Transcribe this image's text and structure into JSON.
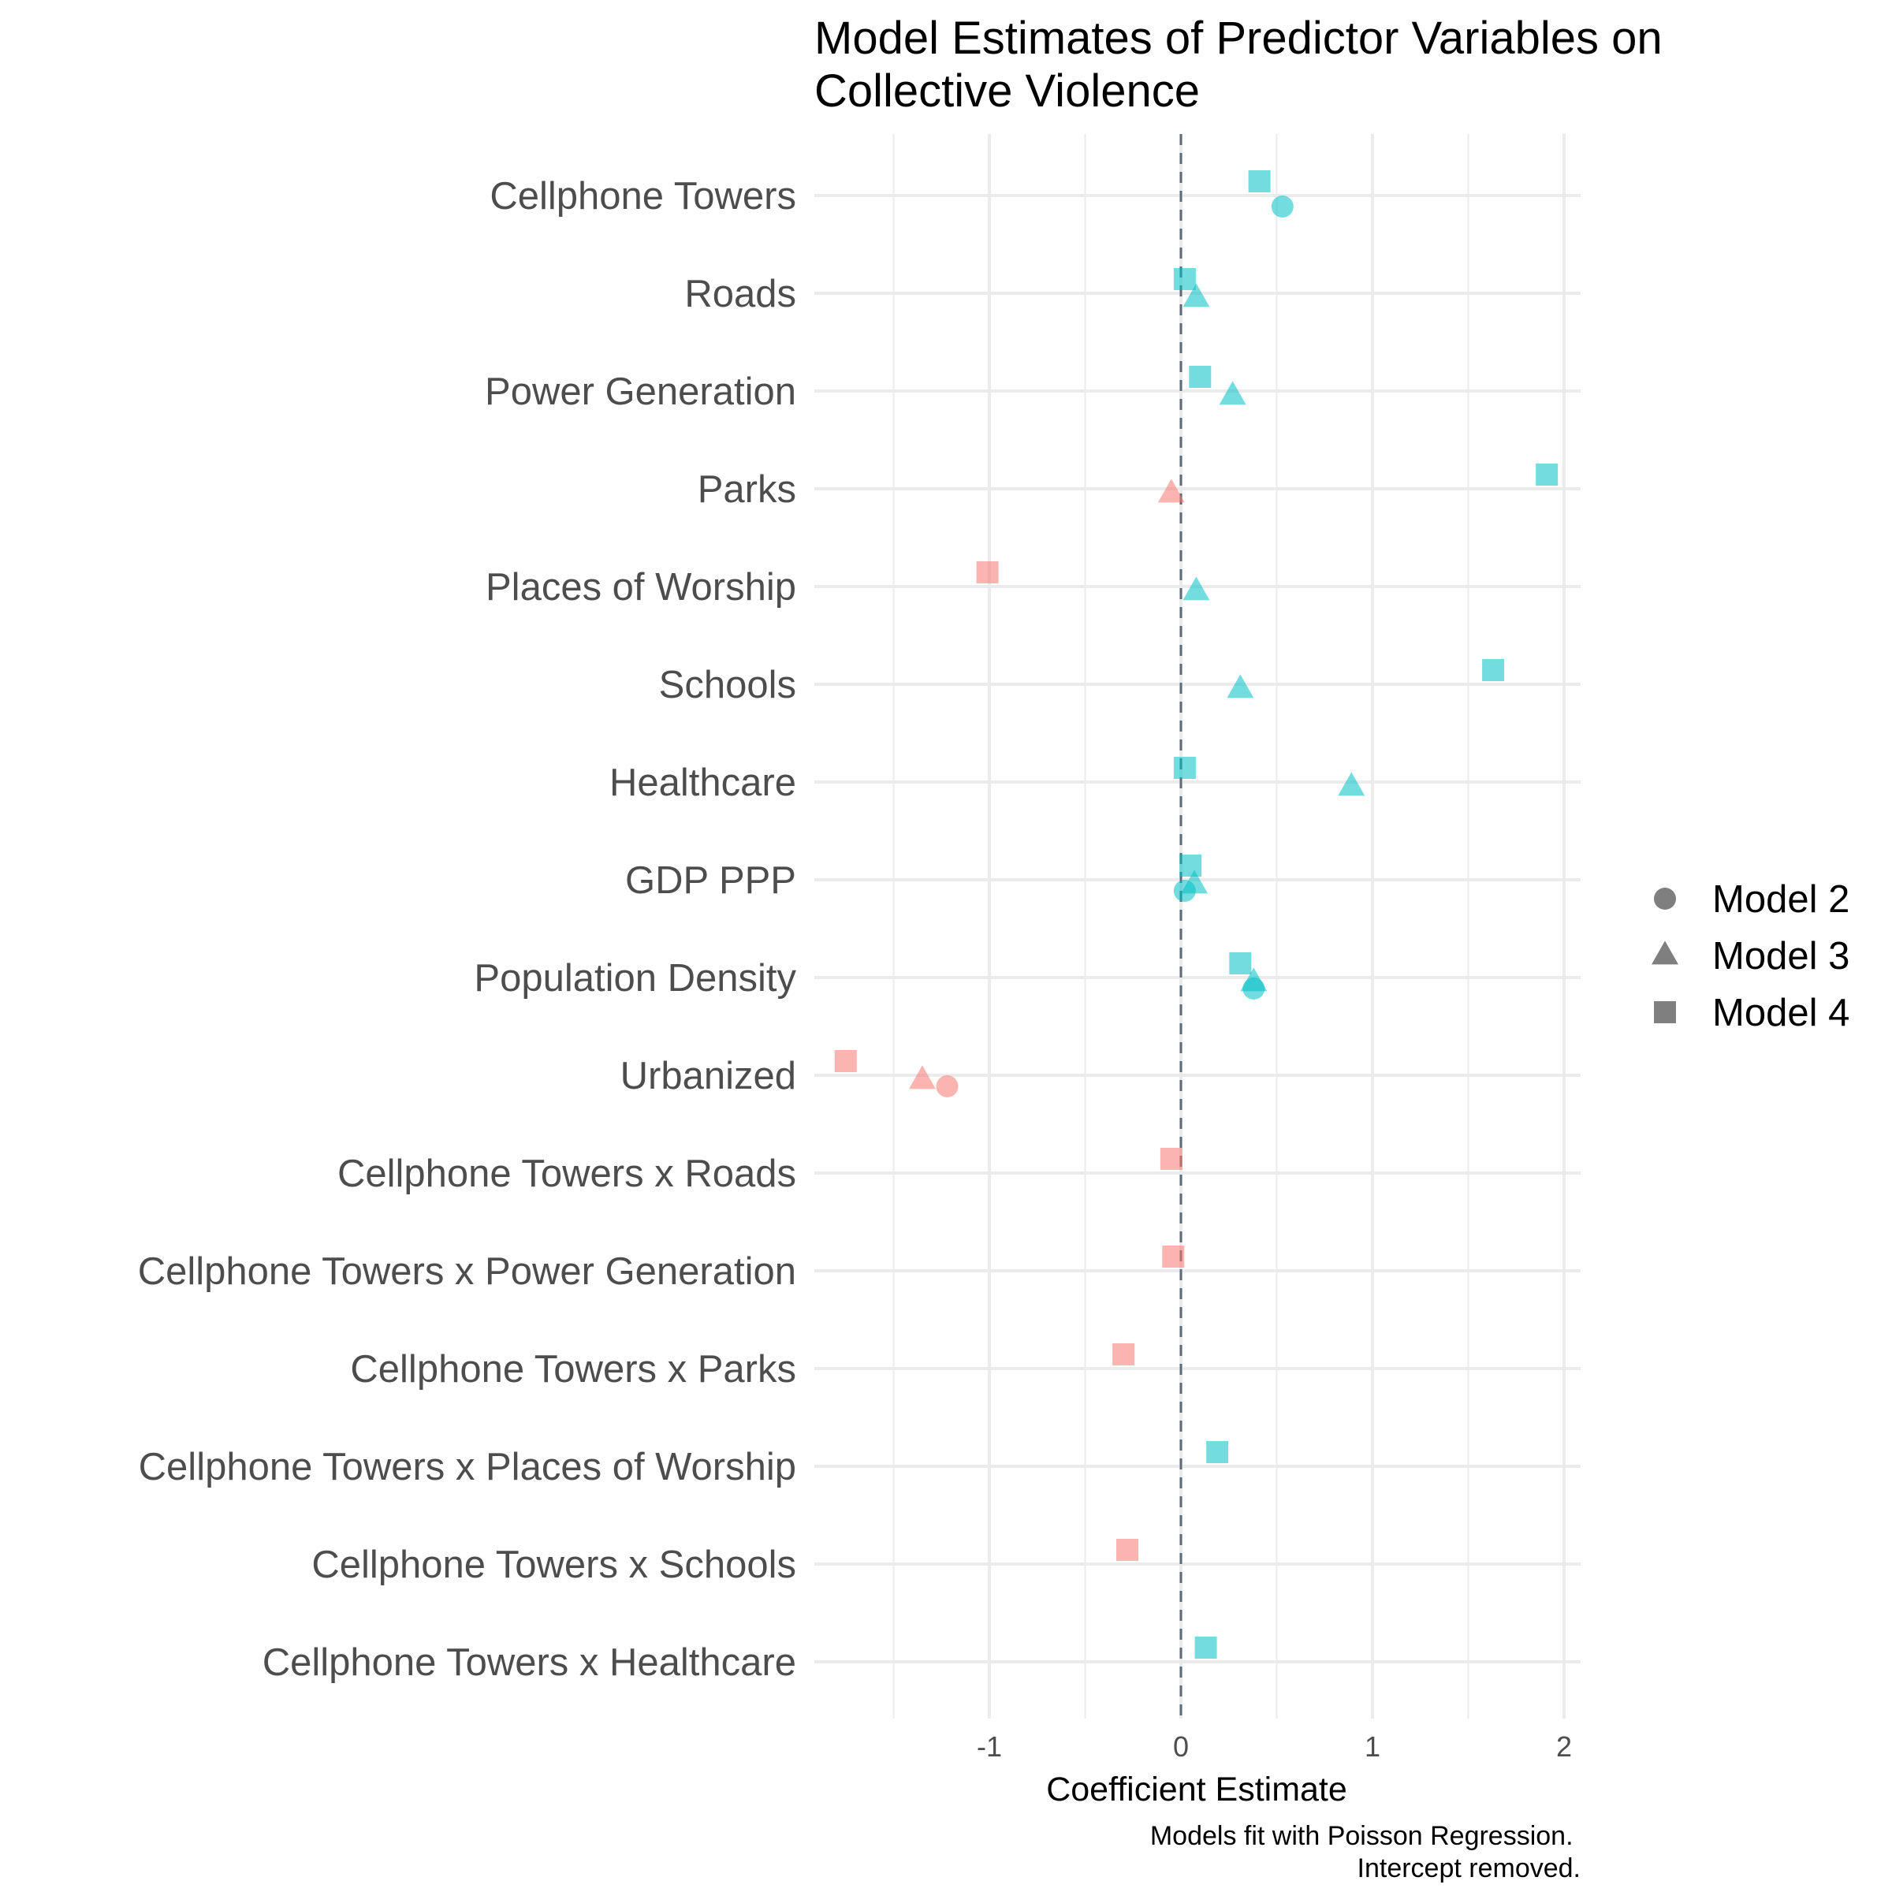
{
  "chart_data": {
    "type": "scatter",
    "title_lines": [
      "Model Estimates of Predictor Variables on",
      "Collective Violence"
    ],
    "xlabel": "Coefficient Estimate",
    "caption_lines": [
      "Models fit with Poisson Regression.",
      "Intercept removed."
    ],
    "xlim": [
      -1.9,
      2.1
    ],
    "x_ticks": [
      {
        "value": -1,
        "label": "-1"
      },
      {
        "value": 0,
        "label": "0"
      },
      {
        "value": 1,
        "label": "1"
      },
      {
        "value": 2,
        "label": "2"
      }
    ],
    "x_minor_ticks": [
      -1.5,
      -0.5,
      0.5,
      1.5
    ],
    "grid": true,
    "reference_line": 0,
    "legend_position": "right",
    "legend": [
      {
        "label": "Model 2",
        "shape": "circle"
      },
      {
        "label": "Model 3",
        "shape": "triangle"
      },
      {
        "label": "Model 4",
        "shape": "square"
      }
    ],
    "colors": {
      "positive": "#00BFC4",
      "negative": "#F8766D",
      "legend_key": "#7f7f7f",
      "zero_line": "#5f6b7a"
    },
    "categories": [
      "Cellphone Towers",
      "Roads",
      "Power Generation",
      "Parks",
      "Places of Worship",
      "Schools",
      "Healthcare",
      "GDP PPP",
      "Population Density",
      "Urbanized",
      "Cellphone Towers x Roads",
      "Cellphone Towers x Power Generation",
      "Cellphone Towers x Parks",
      "Cellphone Towers x Places of Worship",
      "Cellphone Towers x Schools",
      "Cellphone Towers x Healthcare"
    ],
    "series": [
      {
        "name": "Model 2",
        "shape": "circle",
        "values": [
          0.53,
          null,
          null,
          null,
          null,
          null,
          null,
          0.02,
          0.38,
          -1.22,
          null,
          null,
          null,
          null,
          null,
          null
        ]
      },
      {
        "name": "Model 3",
        "shape": "triangle",
        "values": [
          null,
          0.08,
          0.27,
          -0.05,
          0.08,
          0.31,
          0.89,
          0.07,
          0.38,
          -1.35,
          null,
          null,
          null,
          null,
          null,
          null
        ]
      },
      {
        "name": "Model 4",
        "shape": "square",
        "values": [
          0.41,
          0.02,
          0.1,
          1.91,
          -1.01,
          1.63,
          0.02,
          0.05,
          0.31,
          -1.75,
          -0.05,
          -0.04,
          -0.3,
          0.19,
          -0.28,
          0.13
        ]
      }
    ]
  }
}
